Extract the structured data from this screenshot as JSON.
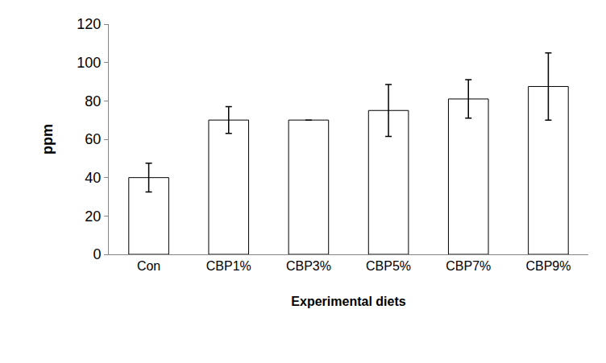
{
  "chart_data": {
    "type": "bar",
    "categories": [
      "Con",
      "CBP1%",
      "CBP3%",
      "CBP5%",
      "CBP7%",
      "CBP9%"
    ],
    "values": [
      40,
      70,
      70,
      75,
      81,
      87.5
    ],
    "errors": [
      7.5,
      7,
      null,
      13.5,
      10,
      17.5
    ],
    "color": "#ffffff",
    "x_label": "Experimental diets",
    "y_label": "ppm",
    "ylim": [
      0,
      120
    ],
    "yticks": [
      0,
      20,
      40,
      60,
      80,
      100,
      120
    ],
    "grid": false
  }
}
